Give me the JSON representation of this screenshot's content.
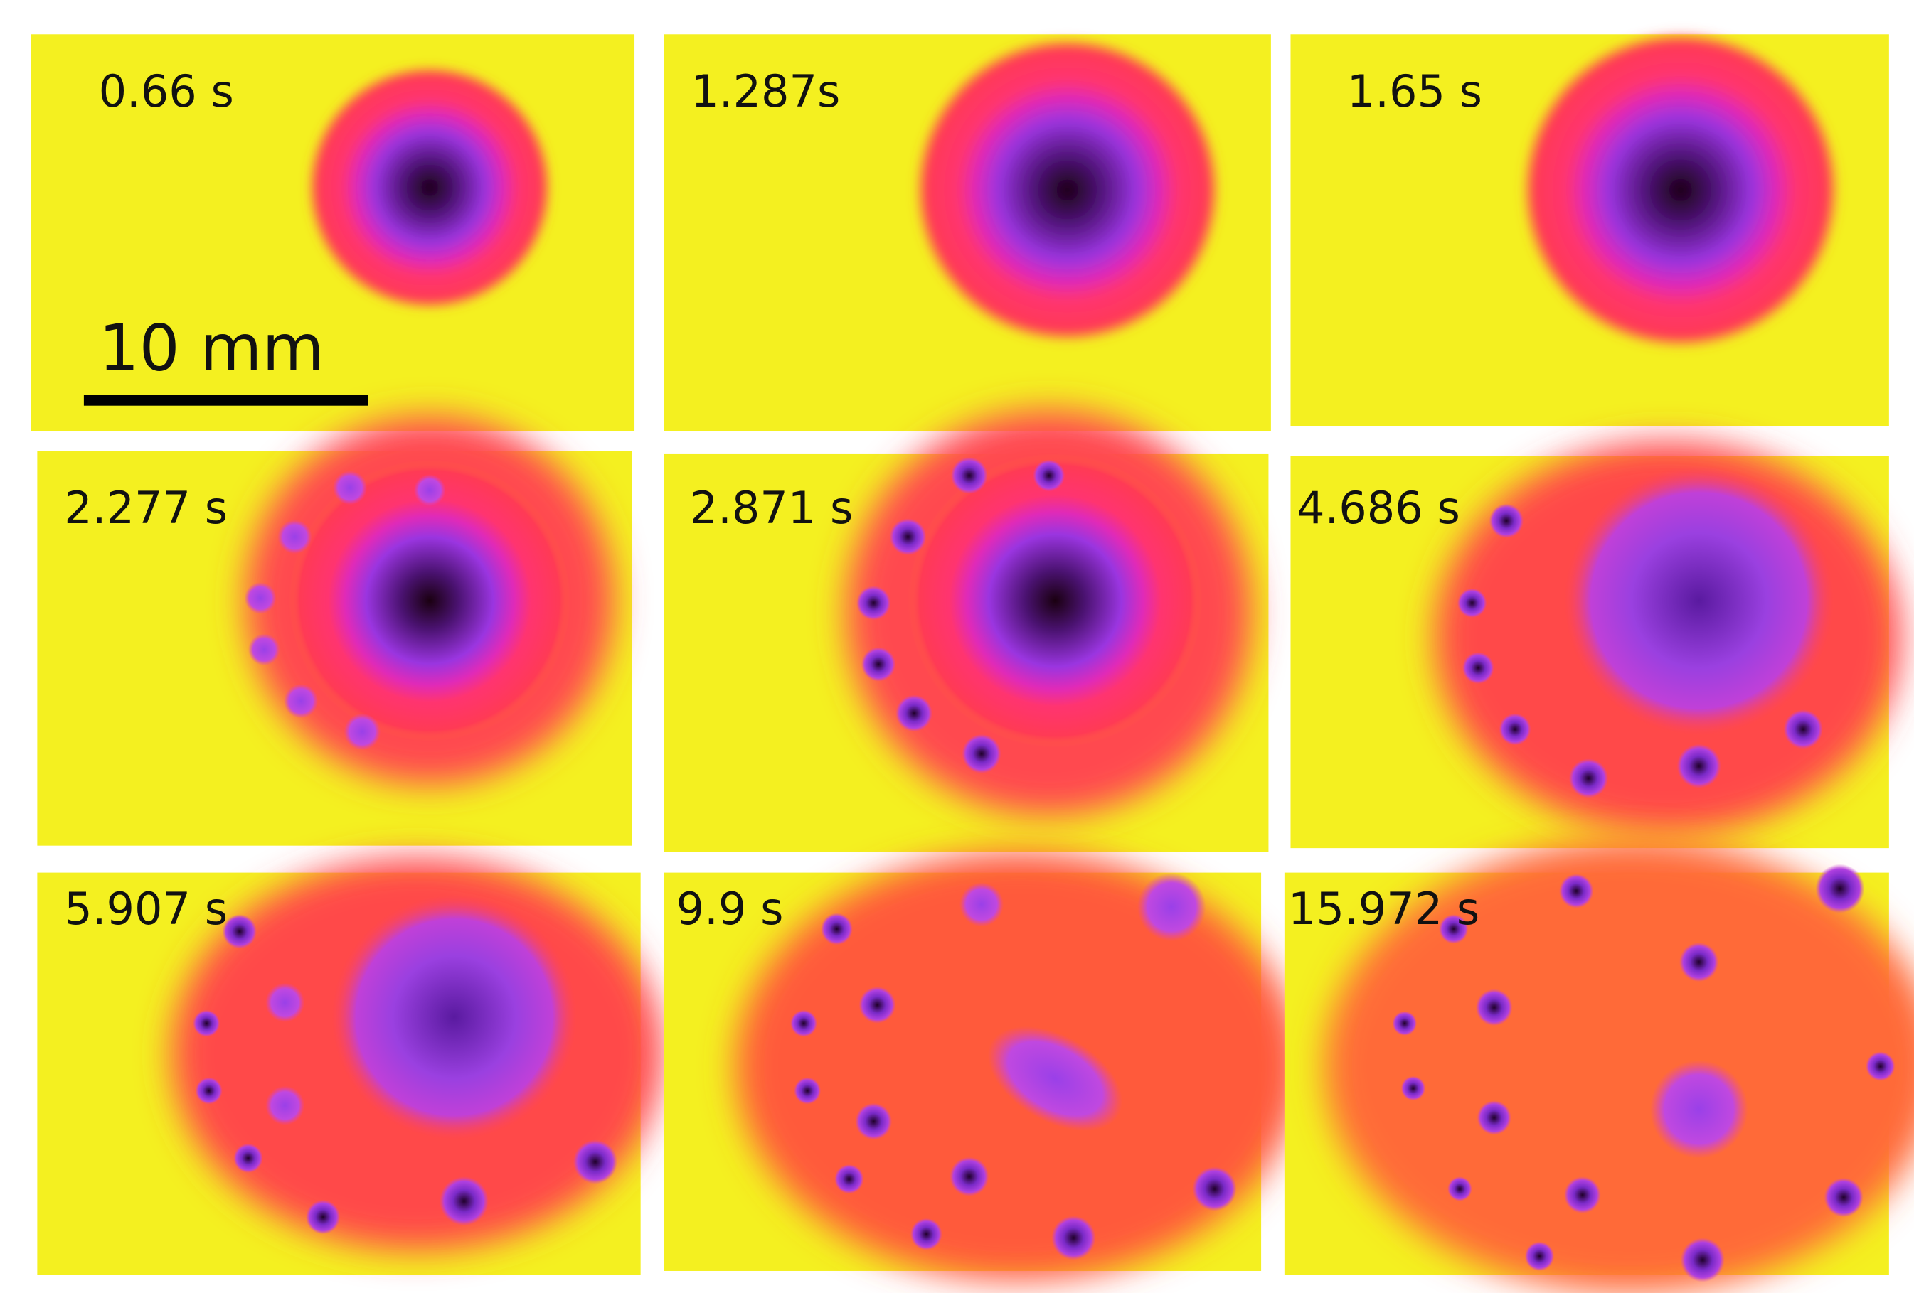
{
  "panels": [
    {
      "label": "0.66 s"
    },
    {
      "label": "1.287s"
    },
    {
      "label": "1.65 s"
    },
    {
      "label": "2.277 s"
    },
    {
      "label": "2.871 s"
    },
    {
      "label": "4.686 s"
    },
    {
      "label": "5.907 s"
    },
    {
      "label": "9.9 s"
    },
    {
      "label": "15.972 s"
    }
  ],
  "scale_bar": {
    "label": "10 mm"
  }
}
